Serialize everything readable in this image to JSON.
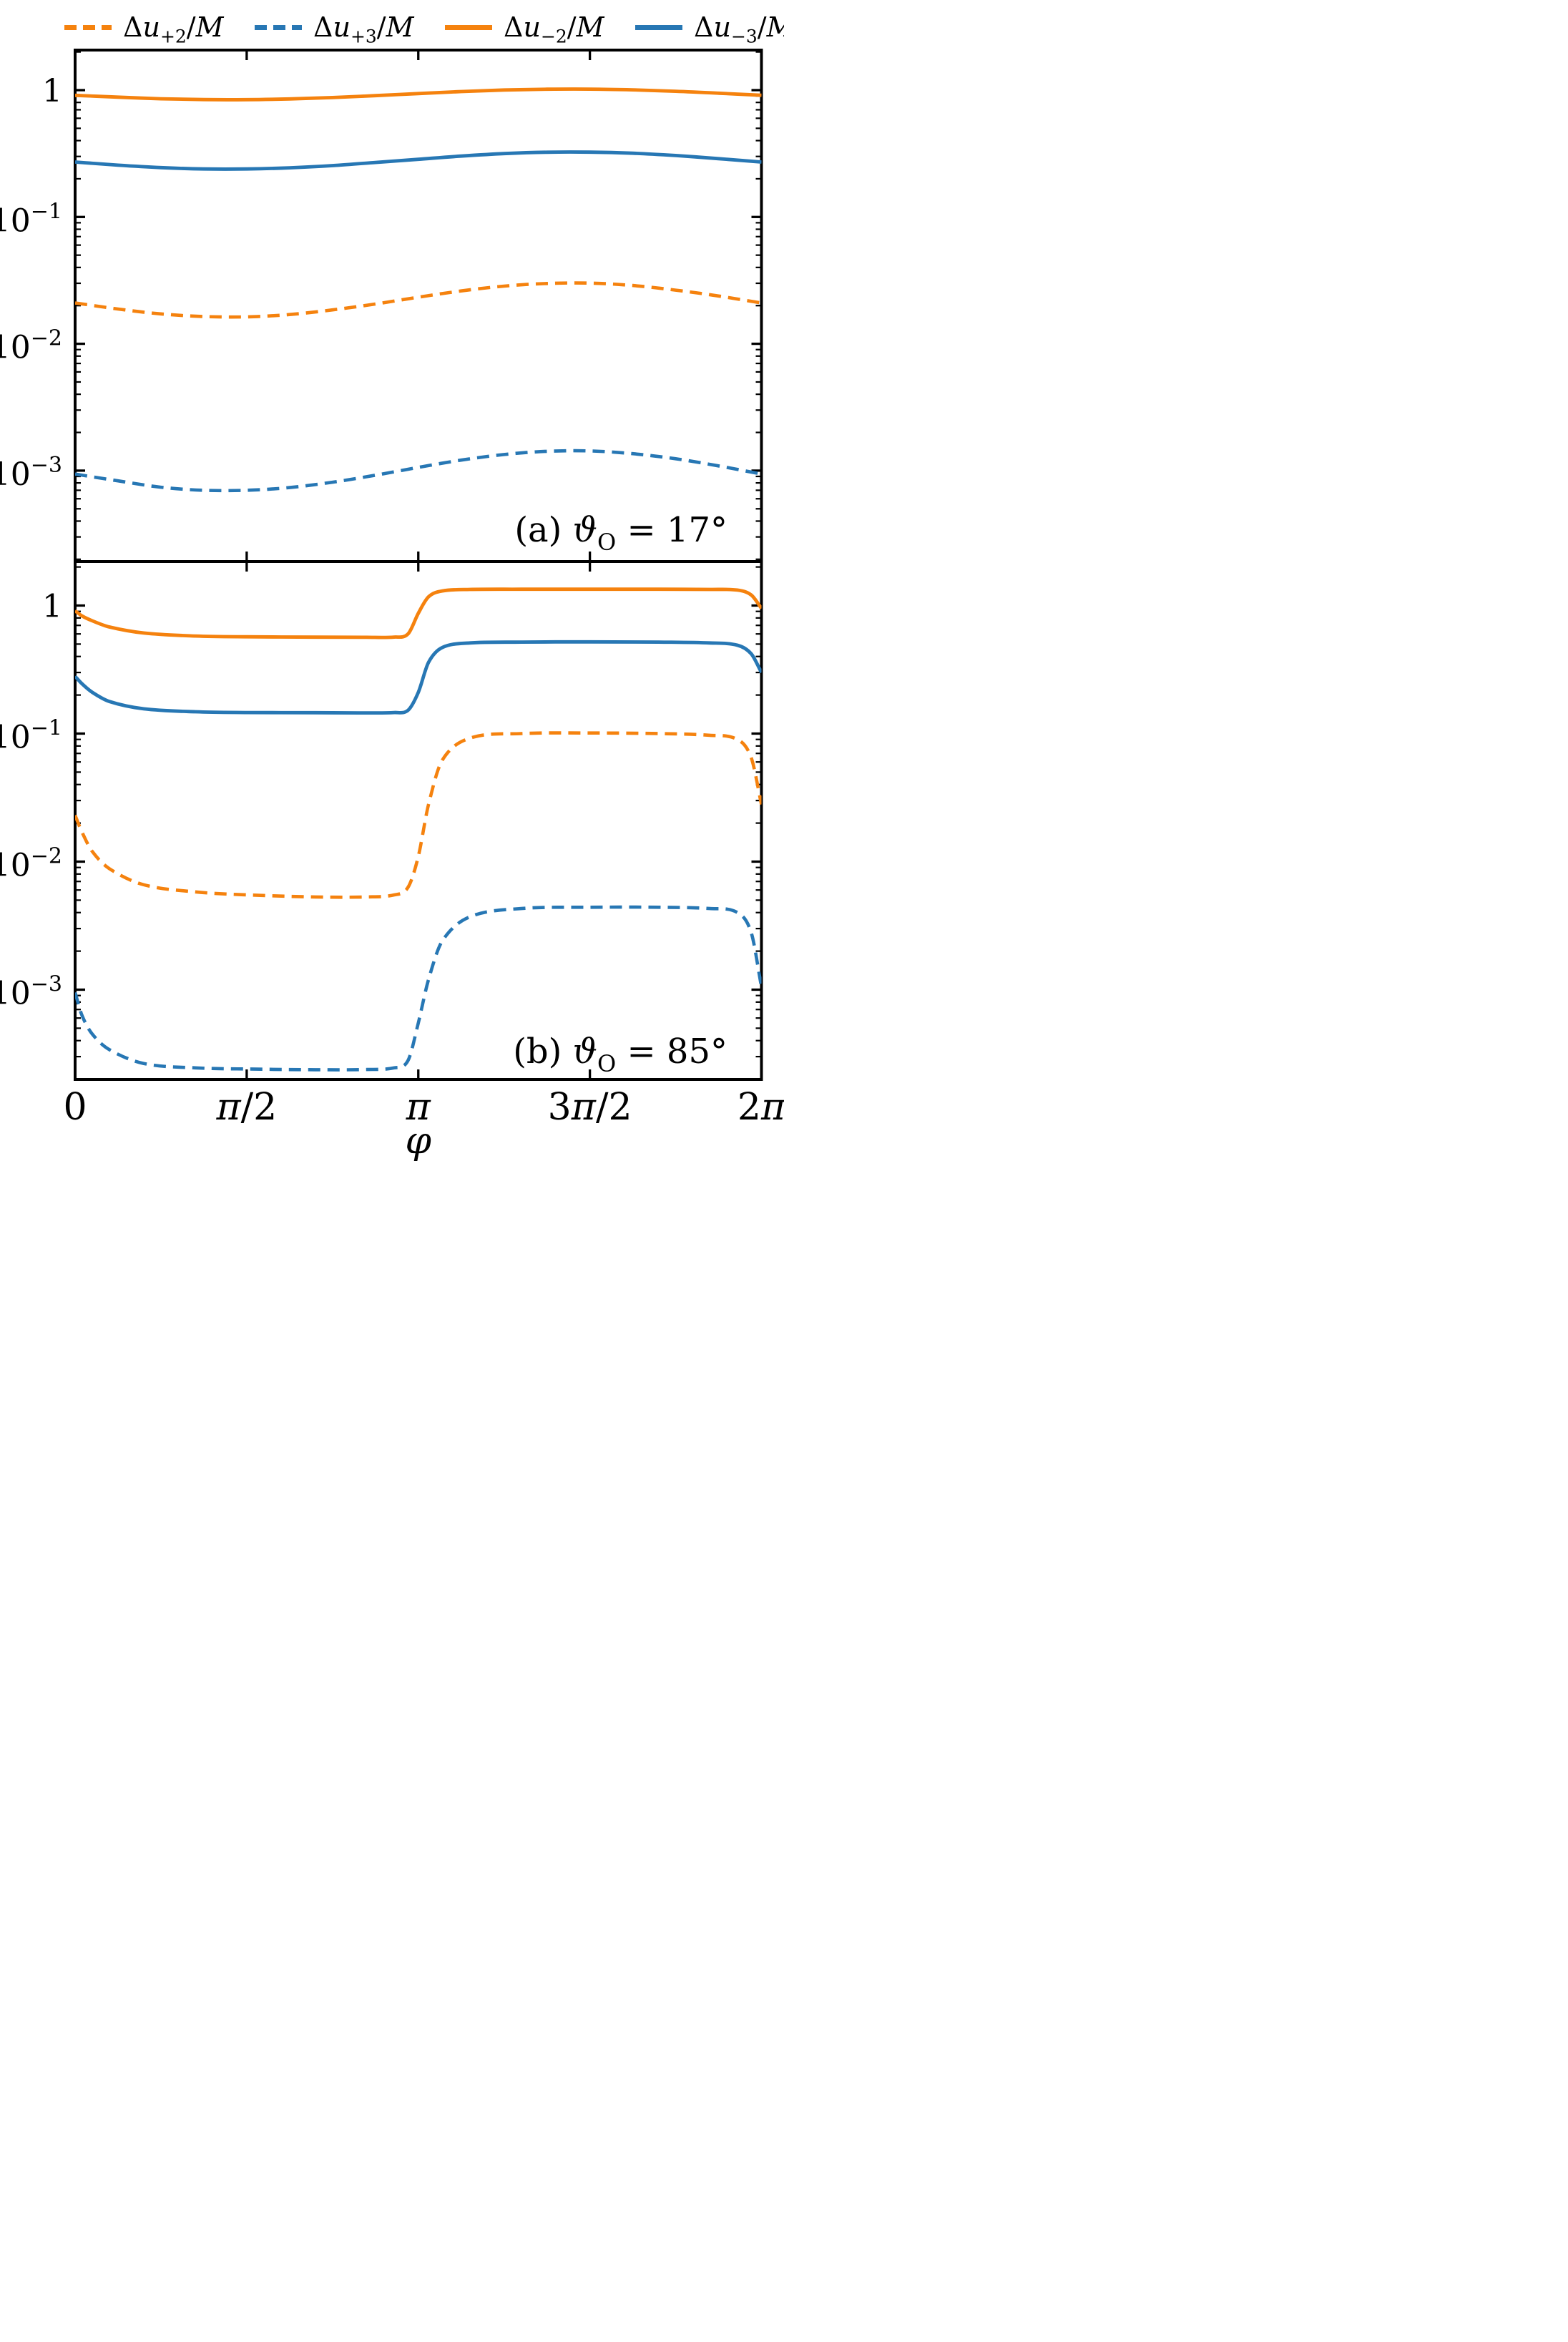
{
  "colors": {
    "orange": "#f5820e",
    "blue": "#2777b4",
    "axis": "#000000",
    "background": "#ffffff"
  },
  "legend": {
    "position": "top",
    "frame": false,
    "items": [
      {
        "key": "du_plus2",
        "color": "orange",
        "dash": true,
        "parts": [
          {
            "t": "Δ"
          },
          {
            "t": "u",
            "i": 1
          },
          {
            "t": "+2",
            "sub": 1
          },
          {
            "t": "/"
          },
          {
            "t": "M",
            "i": 1
          }
        ]
      },
      {
        "key": "du_plus3",
        "color": "blue",
        "dash": true,
        "parts": [
          {
            "t": "Δ"
          },
          {
            "t": "u",
            "i": 1
          },
          {
            "t": "+3",
            "sub": 1
          },
          {
            "t": "/"
          },
          {
            "t": "M",
            "i": 1
          }
        ]
      },
      {
        "key": "du_minus2",
        "color": "orange",
        "dash": false,
        "parts": [
          {
            "t": "Δ"
          },
          {
            "t": "u",
            "i": 1
          },
          {
            "t": "−2",
            "sub": 1
          },
          {
            "t": "/"
          },
          {
            "t": "M",
            "i": 1
          }
        ]
      },
      {
        "key": "du_minus3",
        "color": "blue",
        "dash": false,
        "parts": [
          {
            "t": "Δ"
          },
          {
            "t": "u",
            "i": 1
          },
          {
            "t": "−3",
            "sub": 1
          },
          {
            "t": "/"
          },
          {
            "t": "M",
            "i": 1
          }
        ]
      }
    ]
  },
  "axes": {
    "x": {
      "range_over_pi": [
        0,
        2
      ],
      "label_parts": [
        {
          "t": "φ",
          "i": 1
        }
      ],
      "ticks": [
        {
          "v": 0,
          "parts": [
            {
              "t": "0"
            }
          ]
        },
        {
          "v": 0.5,
          "parts": [
            {
              "t": "π",
              "i": 1
            },
            {
              "t": "/2"
            }
          ]
        },
        {
          "v": 1,
          "parts": [
            {
              "t": "π",
              "i": 1
            }
          ]
        },
        {
          "v": 1.5,
          "parts": [
            {
              "t": "3"
            },
            {
              "t": "π",
              "i": 1
            },
            {
              "t": "/2"
            }
          ]
        },
        {
          "v": 2,
          "parts": [
            {
              "t": "2"
            },
            {
              "t": "π",
              "i": 1
            }
          ]
        }
      ]
    },
    "y": {
      "scale": "log",
      "ticks": [
        {
          "v": 1,
          "base": "1",
          "exp": null
        },
        {
          "v": 0.1,
          "base": "10",
          "exp": "−1"
        },
        {
          "v": 0.01,
          "base": "10",
          "exp": "−2"
        },
        {
          "v": 0.001,
          "base": "10",
          "exp": "−3"
        }
      ]
    }
  },
  "panels": [
    {
      "id": "a",
      "caption_parts": [
        {
          "t": "(a) "
        },
        {
          "t": "ϑ",
          "i": 1
        },
        {
          "t": "O",
          "sub": 1
        },
        {
          "t": " = 17°"
        }
      ]
    },
    {
      "id": "b",
      "caption_parts": [
        {
          "t": "(b) "
        },
        {
          "t": "ϑ",
          "i": 1
        },
        {
          "t": "O",
          "sub": 1
        },
        {
          "t": " = 85°"
        }
      ]
    }
  ],
  "chart_data": [
    {
      "type": "line",
      "panel": "a",
      "annotation": "(a) ϑO = 17°",
      "theta_O_deg": 17,
      "x_unit": "phi_over_pi",
      "xlim_over_pi": [
        0,
        2
      ],
      "ylog": true,
      "ylim": [
        0.00019,
        2.07
      ],
      "grid": false,
      "x": [
        0,
        0.125,
        0.25,
        0.375,
        0.5,
        0.625,
        0.75,
        0.875,
        1,
        1.125,
        1.25,
        1.375,
        1.5,
        1.625,
        1.75,
        1.875,
        2
      ],
      "series": [
        {
          "name": "Δu+2/M",
          "key": "du_plus2",
          "color": "orange",
          "style": "dashed",
          "y": [
            0.021,
            0.0188,
            0.0172,
            0.0164,
            0.0163,
            0.017,
            0.0185,
            0.0206,
            0.0233,
            0.0261,
            0.0285,
            0.0299,
            0.0301,
            0.0288,
            0.0265,
            0.0238,
            0.021
          ]
        },
        {
          "name": "Δu+3/M",
          "key": "du_plus3",
          "color": "blue",
          "style": "dashed",
          "y": [
            0.00094,
            0.00083,
            0.00074,
            0.0007,
            0.0007,
            0.000735,
            0.00081,
            0.00092,
            0.00106,
            0.00121,
            0.00134,
            0.00142,
            0.00143,
            0.00136,
            0.00124,
            0.00109,
            0.00094
          ]
        },
        {
          "name": "Δu−2/M",
          "key": "du_minus2",
          "color": "orange",
          "style": "solid",
          "y": [
            0.91,
            0.88,
            0.855,
            0.842,
            0.841,
            0.852,
            0.874,
            0.905,
            0.94,
            0.974,
            1.002,
            1.017,
            1.019,
            1.005,
            0.98,
            0.946,
            0.911
          ]
        },
        {
          "name": "Δu−3/M",
          "key": "du_minus3",
          "color": "blue",
          "style": "solid",
          "y": [
            0.271,
            0.256,
            0.245,
            0.239,
            0.239,
            0.244,
            0.254,
            0.269,
            0.285,
            0.302,
            0.316,
            0.324,
            0.3245,
            0.318,
            0.305,
            0.288,
            0.271
          ]
        }
      ]
    },
    {
      "type": "line",
      "panel": "b",
      "annotation": "(b) ϑO = 85°",
      "theta_O_deg": 85,
      "x_unit": "phi_over_pi",
      "xlim_over_pi": [
        0,
        2
      ],
      "ylog": true,
      "ylim": [
        0.000205,
        2.21
      ],
      "grid": false,
      "x": [
        0,
        0.02,
        0.05,
        0.1,
        0.2,
        0.35,
        0.5,
        0.7,
        0.85,
        0.93,
        0.97,
        1,
        1.03,
        1.07,
        1.15,
        1.3,
        1.5,
        1.7,
        1.85,
        1.93,
        1.97,
        2
      ],
      "series": [
        {
          "name": "Δu+2/M",
          "key": "du_plus2",
          "color": "orange",
          "style": "dashed",
          "y": [
            0.023,
            0.017,
            0.012,
            0.0088,
            0.0066,
            0.0058,
            0.0055,
            0.0053,
            0.0053,
            0.0055,
            0.0063,
            0.011,
            0.028,
            0.062,
            0.092,
            0.1,
            0.101,
            0.1,
            0.097,
            0.09,
            0.065,
            0.028
          ]
        },
        {
          "name": "Δu+3/M",
          "key": "du_plus3",
          "color": "blue",
          "style": "dashed",
          "y": [
            0.00095,
            0.00063,
            0.00045,
            0.00034,
            0.000265,
            0.000245,
            0.00024,
            0.000237,
            0.000238,
            0.000245,
            0.00028,
            0.00055,
            0.0012,
            0.0024,
            0.0037,
            0.0043,
            0.0044,
            0.0044,
            0.0043,
            0.004,
            0.0028,
            0.00105
          ]
        },
        {
          "name": "Δu−2/M",
          "key": "du_minus2",
          "color": "orange",
          "style": "solid",
          "y": [
            0.91,
            0.83,
            0.76,
            0.68,
            0.61,
            0.578,
            0.57,
            0.566,
            0.565,
            0.567,
            0.6,
            0.87,
            1.17,
            1.3,
            1.335,
            1.34,
            1.341,
            1.34,
            1.335,
            1.32,
            1.21,
            0.95
          ]
        },
        {
          "name": "Δu−3/M",
          "key": "du_minus3",
          "color": "blue",
          "style": "solid",
          "y": [
            0.28,
            0.245,
            0.21,
            0.178,
            0.156,
            0.148,
            0.146,
            0.1455,
            0.145,
            0.146,
            0.152,
            0.21,
            0.36,
            0.47,
            0.51,
            0.518,
            0.52,
            0.518,
            0.51,
            0.49,
            0.42,
            0.3
          ]
        }
      ]
    }
  ]
}
